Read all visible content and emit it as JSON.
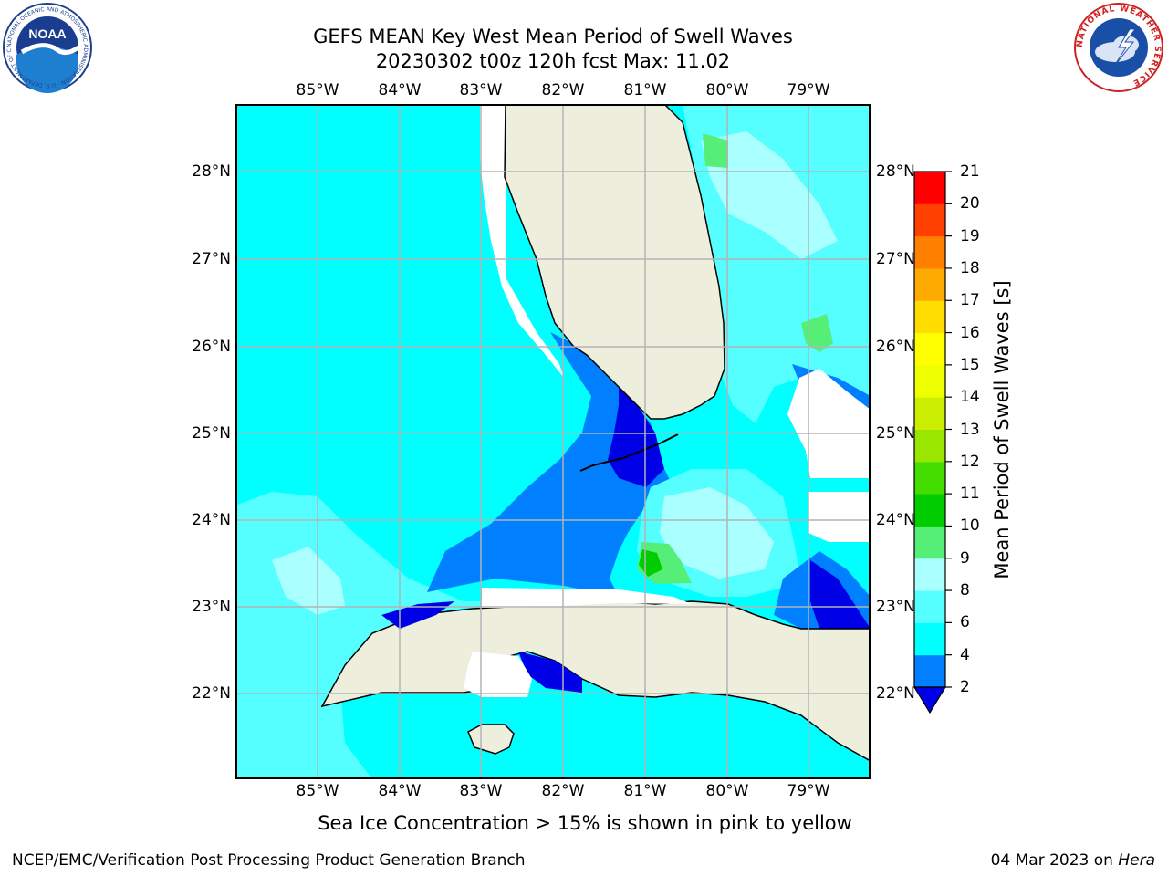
{
  "header": {
    "title_line1": "GEFS MEAN Key West Mean Period of Swell Waves",
    "title_line2": "20230302 t00z 120h fcst   Max: 11.02"
  },
  "map": {
    "lon_labels": [
      "85°W",
      "84°W",
      "83°W",
      "82°W",
      "81°W",
      "80°W",
      "79°W"
    ],
    "lat_labels": [
      "28°N",
      "27°N",
      "26°N",
      "25°N",
      "24°N",
      "23°N",
      "22°N"
    ],
    "lon_range": [
      -86.0,
      -78.3
    ],
    "lat_range": [
      21.0,
      28.8
    ],
    "land_color": "#eeeedd",
    "gridline_color": "#b3b3b3"
  },
  "colorbar": {
    "title": "Mean Period of Swell Waves [s]",
    "tick_labels": [
      "2",
      "4",
      "6",
      "8",
      "9",
      "10",
      "11",
      "12",
      "13",
      "14",
      "15",
      "16",
      "17",
      "18",
      "19",
      "20",
      "21"
    ],
    "colors": [
      "#0000e6",
      "#0080ff",
      "#00ffff",
      "#55ffff",
      "#aaffff",
      "#55ee77",
      "#00cc00",
      "#44dd00",
      "#99e600",
      "#ccee00",
      "#eeff00",
      "#ffff00",
      "#ffdd00",
      "#ffaa00",
      "#ff8000",
      "#ff4000",
      "#ff0000"
    ],
    "extend": "min"
  },
  "note": "Sea Ice Concentration > 15% is shown in pink to yellow",
  "footer": {
    "left": "NCEP/EMC/Verification Post Processing Product Generation Branch",
    "right_prefix": "04 Mar 2023 on ",
    "right_machine": "Hera"
  },
  "logos": {
    "noaa_text": "NOAA",
    "noaa_ring_text": "NATIONAL OCEANIC AND ATMOSPHERIC ADMINISTRATION · U.S. DEPARTMENT OF COMMERCE",
    "nws_ring_text": "NATIONAL WEATHER SERVICE"
  }
}
